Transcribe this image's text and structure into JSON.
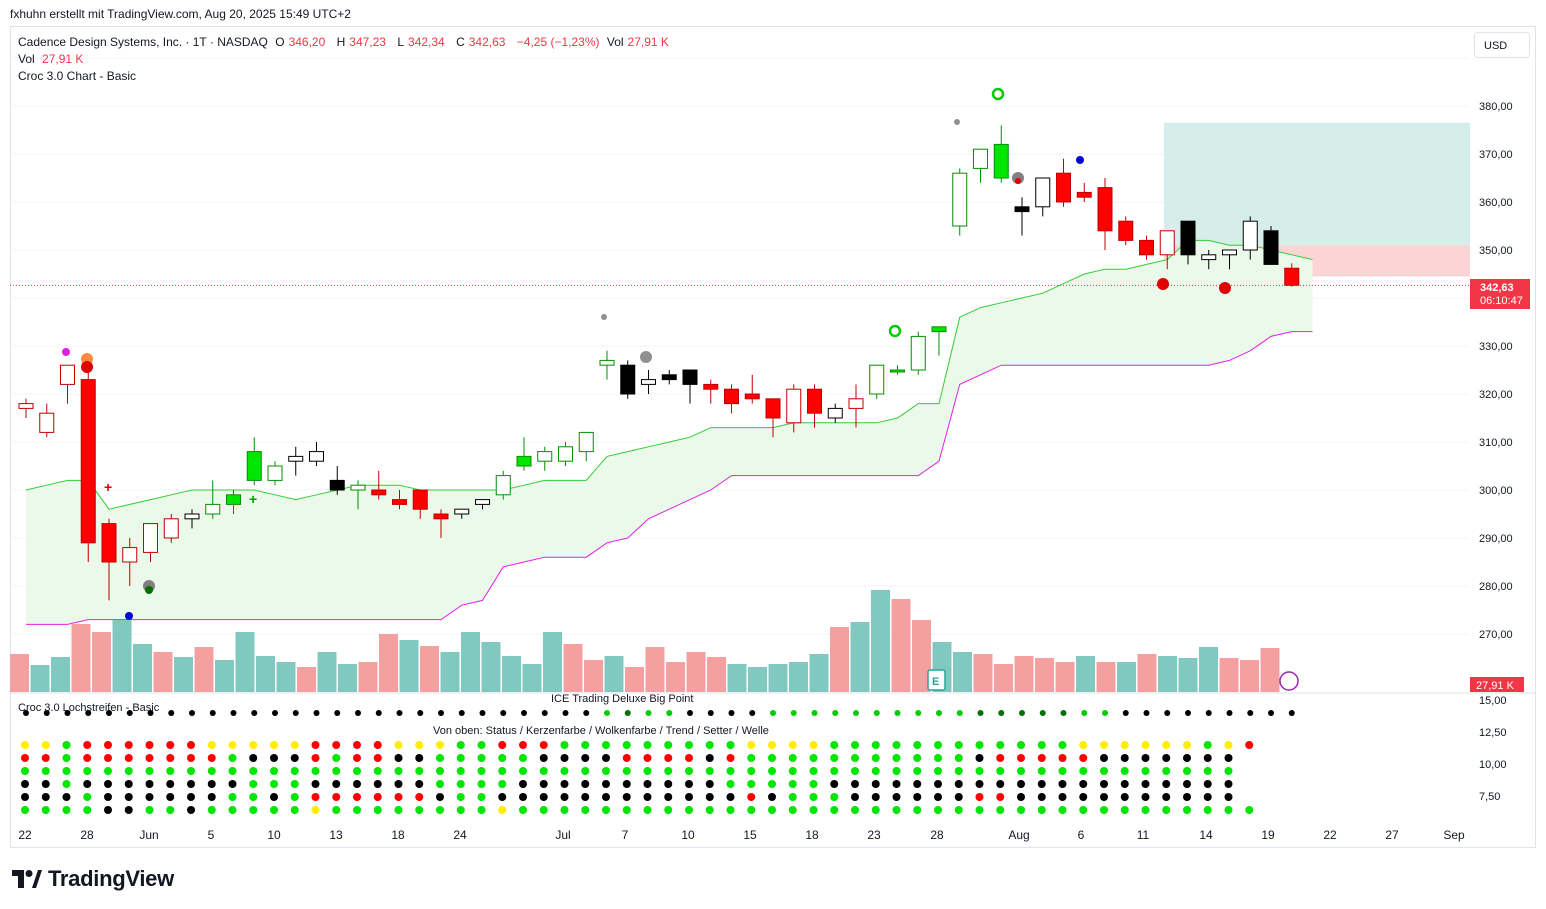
{
  "header": {
    "attribution": "fxhuhn erstellt mit TradingView.com, Aug 20, 2025 15:49 UTC+2"
  },
  "legend": {
    "symbol": "Cadence Design Systems, Inc. · 1T · NASDAQ",
    "o_label": "O",
    "o_val": "346,20",
    "h_label": "H",
    "h_val": "347,23",
    "l_label": "L",
    "l_val": "342,34",
    "c_label": "C",
    "c_val": "342,63",
    "change": "−4,25 (−1,23%)",
    "vol_label": "Vol",
    "vol_val": "27,91 K",
    "vol_line_label": "Vol",
    "vol_line_val": "27,91 K",
    "indicator1": "Croc 3.0 Chart - Basic"
  },
  "currency_button": "USD",
  "price_badge": {
    "price": "342,63",
    "countdown": "06:10:47"
  },
  "volume_badge": "27,91 K",
  "lower_pane": {
    "indicator": "Croc 3.0 Lochstreifen - Basic",
    "big_point_title": "ICE Trading Deluxe Big Point",
    "rows_title": "Von oben: Status / Kerzenfarbe / Wolkenfarbe / Trend / Setter / Welle",
    "y_ticks": [
      "15,00",
      "12,50",
      "10,00",
      "7,50"
    ]
  },
  "brand": {
    "name": "TradingView"
  },
  "colors": {
    "up": "#00e600",
    "down": "#ff0000",
    "black": "#000000",
    "cloud": "#c8f0c8",
    "cloud_line": "#33cc33",
    "magenta": "#e020e0",
    "vol_up": "#80c8c0",
    "vol_down": "#f5a0a0",
    "target_zone": "#d6eeea",
    "stop_zone": "#fbd5d5"
  },
  "chart_data": {
    "type": "candlestick",
    "title": "Cadence Design Systems, Inc. · 1T · NASDAQ",
    "ylim": [
      262,
      392
    ],
    "y_ticks": [
      "270,00",
      "280,00",
      "290,00",
      "300,00",
      "310,00",
      "320,00",
      "330,00",
      "340,00",
      "350,00",
      "360,00",
      "370,00",
      "380,00"
    ],
    "x_ticks": [
      "22",
      "28",
      "Jun",
      "5",
      "10",
      "13",
      "18",
      "24",
      "Jul",
      "7",
      "10",
      "15",
      "18",
      "23",
      "28",
      "Aug",
      "6",
      "11",
      "14",
      "19",
      "22",
      "27",
      "Sep"
    ],
    "candles": [
      {
        "o": 318,
        "h": 319,
        "l": 315,
        "c": 317,
        "col": "red_hollow"
      },
      {
        "o": 316,
        "h": 318,
        "l": 311,
        "c": 312,
        "col": "red_hollow"
      },
      {
        "o": 322,
        "h": 326,
        "l": 318,
        "c": 326,
        "col": "red_hollow"
      },
      {
        "o": 323,
        "h": 325,
        "l": 285,
        "c": 289,
        "col": "red"
      },
      {
        "o": 293,
        "h": 294,
        "l": 277,
        "c": 285,
        "col": "red"
      },
      {
        "o": 285,
        "h": 290,
        "l": 280,
        "c": 288,
        "col": "red_hollow"
      },
      {
        "o": 287,
        "h": 293,
        "l": 285,
        "c": 293,
        "col": "red_hollow"
      },
      {
        "o": 290,
        "h": 295,
        "l": 289,
        "c": 294,
        "col": "red_hollow"
      },
      {
        "o": 294,
        "h": 296,
        "l": 292,
        "c": 295,
        "col": "black_hollow"
      },
      {
        "o": 295,
        "h": 302,
        "l": 294,
        "c": 297,
        "col": "green_hollow"
      },
      {
        "o": 297,
        "h": 300,
        "l": 295,
        "c": 299,
        "col": "green"
      },
      {
        "o": 302,
        "h": 311,
        "l": 301,
        "c": 308,
        "col": "green"
      },
      {
        "o": 302,
        "h": 306,
        "l": 301,
        "c": 305,
        "col": "green_hollow"
      },
      {
        "o": 306,
        "h": 309,
        "l": 303,
        "c": 307,
        "col": "black_hollow"
      },
      {
        "o": 306,
        "h": 310,
        "l": 305,
        "c": 308,
        "col": "black_hollow"
      },
      {
        "o": 302,
        "h": 305,
        "l": 299,
        "c": 300,
        "col": "black"
      },
      {
        "o": 300,
        "h": 302,
        "l": 296,
        "c": 301,
        "col": "green_hollow"
      },
      {
        "o": 300,
        "h": 304,
        "l": 298,
        "c": 299,
        "col": "red"
      },
      {
        "o": 298,
        "h": 300,
        "l": 296,
        "c": 297,
        "col": "red"
      },
      {
        "o": 300,
        "h": 300,
        "l": 294,
        "c": 296,
        "col": "red"
      },
      {
        "o": 295,
        "h": 296,
        "l": 290,
        "c": 294,
        "col": "red"
      },
      {
        "o": 295,
        "h": 296,
        "l": 294,
        "c": 296,
        "col": "black_hollow"
      },
      {
        "o": 297,
        "h": 298,
        "l": 296,
        "c": 298,
        "col": "black_hollow"
      },
      {
        "o": 299,
        "h": 304,
        "l": 298,
        "c": 303,
        "col": "green_hollow"
      },
      {
        "o": 305,
        "h": 311,
        "l": 304,
        "c": 307,
        "col": "green"
      },
      {
        "o": 306,
        "h": 309,
        "l": 304,
        "c": 308,
        "col": "green_hollow"
      },
      {
        "o": 306,
        "h": 310,
        "l": 305,
        "c": 309,
        "col": "green_hollow"
      },
      {
        "o": 308,
        "h": 312,
        "l": 306,
        "c": 312,
        "col": "green_hollow"
      },
      {
        "o": 326,
        "h": 329,
        "l": 323,
        "c": 327,
        "col": "green_hollow"
      },
      {
        "o": 326,
        "h": 327,
        "l": 319,
        "c": 320,
        "col": "black"
      },
      {
        "o": 322,
        "h": 325,
        "l": 320,
        "c": 323,
        "col": "black_hollow"
      },
      {
        "o": 324,
        "h": 325,
        "l": 322,
        "c": 323,
        "col": "black"
      },
      {
        "o": 325,
        "h": 325,
        "l": 318,
        "c": 322,
        "col": "black"
      },
      {
        "o": 322,
        "h": 323,
        "l": 318,
        "c": 321,
        "col": "red"
      },
      {
        "o": 321,
        "h": 322,
        "l": 316,
        "c": 318,
        "col": "red"
      },
      {
        "o": 320,
        "h": 324,
        "l": 318,
        "c": 319,
        "col": "red"
      },
      {
        "o": 319,
        "h": 319,
        "l": 311,
        "c": 315,
        "col": "red"
      },
      {
        "o": 314,
        "h": 322,
        "l": 312,
        "c": 321,
        "col": "red_hollow"
      },
      {
        "o": 321,
        "h": 322,
        "l": 313,
        "c": 316,
        "col": "red"
      },
      {
        "o": 315,
        "h": 318,
        "l": 314,
        "c": 317,
        "col": "black_hollow"
      },
      {
        "o": 317,
        "h": 322,
        "l": 313,
        "c": 319,
        "col": "red_hollow"
      },
      {
        "o": 320,
        "h": 326,
        "l": 319,
        "c": 326,
        "col": "green_hollow"
      },
      {
        "o": 325,
        "h": 326,
        "l": 324,
        "c": 325,
        "col": "green"
      },
      {
        "o": 325,
        "h": 333,
        "l": 324,
        "c": 332,
        "col": "green_hollow"
      },
      {
        "o": 333,
        "h": 334,
        "l": 328,
        "c": 334,
        "col": "green"
      },
      {
        "o": 355,
        "h": 367,
        "l": 353,
        "c": 366,
        "col": "green_hollow"
      },
      {
        "o": 367,
        "h": 371,
        "l": 364,
        "c": 371,
        "col": "green_hollow"
      },
      {
        "o": 372,
        "h": 376,
        "l": 364,
        "c": 365,
        "col": "green"
      },
      {
        "o": 359,
        "h": 361,
        "l": 353,
        "c": 358,
        "col": "black"
      },
      {
        "o": 359,
        "h": 365,
        "l": 357,
        "c": 365,
        "col": "black_hollow"
      },
      {
        "o": 366,
        "h": 369,
        "l": 359,
        "c": 360,
        "col": "red"
      },
      {
        "o": 362,
        "h": 364,
        "l": 360,
        "c": 361,
        "col": "red"
      },
      {
        "o": 363,
        "h": 365,
        "l": 350,
        "c": 354,
        "col": "red"
      },
      {
        "o": 356,
        "h": 357,
        "l": 351,
        "c": 352,
        "col": "red"
      },
      {
        "o": 352,
        "h": 353,
        "l": 348,
        "c": 349,
        "col": "red"
      },
      {
        "o": 349,
        "h": 354,
        "l": 346,
        "c": 354,
        "col": "red_hollow"
      },
      {
        "o": 356,
        "h": 356,
        "l": 347,
        "c": 349,
        "col": "black"
      },
      {
        "o": 349,
        "h": 350,
        "l": 346,
        "c": 348,
        "col": "black_hollow"
      },
      {
        "o": 350,
        "h": 350,
        "l": 346,
        "c": 349,
        "col": "black_hollow"
      },
      {
        "o": 350,
        "h": 357,
        "l": 348,
        "c": 356,
        "col": "black_hollow"
      },
      {
        "o": 354,
        "h": 355,
        "l": 347,
        "c": 347,
        "col": "black"
      },
      {
        "o": 346.2,
        "h": 347.23,
        "l": 342.34,
        "c": 342.63,
        "col": "red"
      }
    ]
  }
}
